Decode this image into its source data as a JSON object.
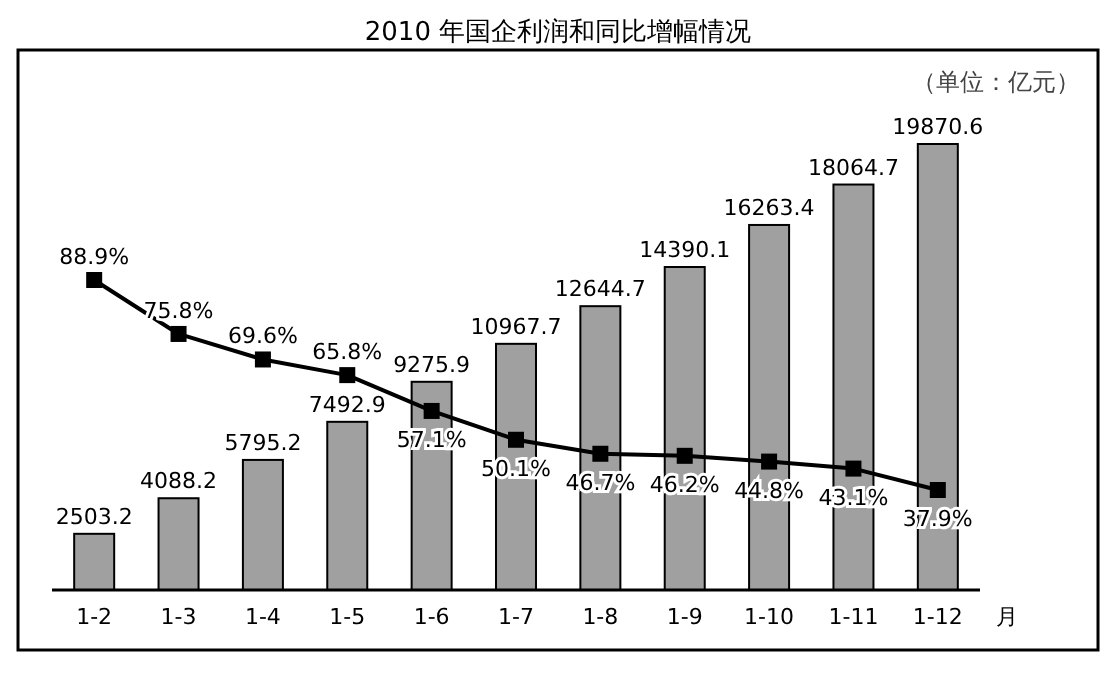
{
  "chart_data": {
    "type": "bar",
    "title": "2010 年国企利润和同比增幅情况",
    "xlabel": "月",
    "annotations": [
      "（单位：亿元）"
    ],
    "categories": [
      "1-2",
      "1-3",
      "1-4",
      "1-5",
      "1-6",
      "1-7",
      "1-8",
      "1-9",
      "1-10",
      "1-11",
      "1-12"
    ],
    "series": [
      {
        "color": "#a0a0a0",
        "values": [
          2503.2,
          4088.2,
          5795.2,
          7492.9,
          9275.9,
          10967.7,
          12644.7,
          14390.1,
          16263.4,
          18064.7,
          19870.6
        ]
      },
      {
        "type": "line",
        "axis": "y2",
        "color": "#000000",
        "marker": "square",
        "value_labels": [
          "88.9%",
          "75.8%",
          "69.6%",
          "65.8%",
          "57.1%",
          "50.1%",
          "46.7%",
          "46.2%",
          "44.8%",
          "43.1%",
          "37.9%"
        ],
        "values": [
          88.9,
          75.8,
          69.6,
          65.8,
          57.1,
          50.1,
          46.7,
          46.2,
          44.8,
          43.1,
          37.9
        ]
      }
    ],
    "data_labels": true
  }
}
